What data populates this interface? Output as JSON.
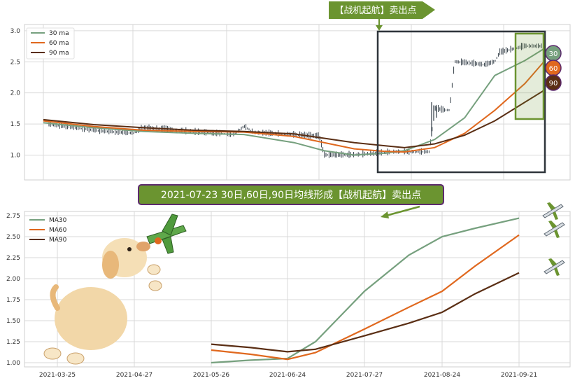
{
  "colors": {
    "ma30": "#76a07e",
    "ma60": "#e0681e",
    "ma90": "#5a2e14",
    "candle": "#2f3a44",
    "callout_bg": "#6b9430",
    "callout_border": "#5c2a6e",
    "box_dark": "#2f353b",
    "box_green": "#6b9430",
    "grid": "#d9d9d9"
  },
  "top_chart": {
    "callout_text": "【战机起航】卖出点",
    "legend": [
      "30 ma",
      "60 ma",
      "90 ma"
    ],
    "badges": [
      "30",
      "60",
      "90"
    ]
  },
  "bottom_chart": {
    "callout_text": "2021-07-23 30日,60日,90日均线形成【战机起航】卖出点",
    "legend": [
      "MA30",
      "MA60",
      "MA90"
    ]
  },
  "chart_data": [
    {
      "type": "line",
      "ylim": [
        0.6,
        3.1
      ],
      "yticks": [
        "1.0",
        "1.5",
        "2.0",
        "2.5",
        "3.0"
      ],
      "series": [
        {
          "name": "30 ma",
          "x": [
            0,
            10,
            20,
            30,
            40,
            50,
            56,
            62,
            68,
            72,
            78,
            84,
            90,
            96,
            100
          ],
          "values": [
            1.52,
            1.44,
            1.38,
            1.35,
            1.33,
            1.2,
            1.07,
            1.0,
            1.03,
            1.07,
            1.25,
            1.6,
            2.28,
            2.52,
            2.72
          ]
        },
        {
          "name": "60 ma",
          "x": [
            0,
            10,
            20,
            30,
            40,
            50,
            56,
            62,
            68,
            72,
            78,
            84,
            90,
            96,
            100
          ],
          "values": [
            1.55,
            1.46,
            1.4,
            1.38,
            1.37,
            1.3,
            1.2,
            1.1,
            1.06,
            1.05,
            1.12,
            1.35,
            1.72,
            2.15,
            2.52
          ]
        },
        {
          "name": "90 ma",
          "x": [
            0,
            10,
            20,
            30,
            40,
            50,
            56,
            62,
            68,
            72,
            78,
            84,
            90,
            96,
            100
          ],
          "values": [
            1.57,
            1.49,
            1.44,
            1.4,
            1.38,
            1.34,
            1.27,
            1.2,
            1.15,
            1.12,
            1.18,
            1.32,
            1.55,
            1.85,
            2.05
          ]
        }
      ]
    },
    {
      "type": "line",
      "xticks": [
        "2021-03-25",
        "2021-04-27",
        "2021-05-26",
        "2021-06-24",
        "2021-07-27",
        "2021-08-24",
        "2021-09-21"
      ],
      "yticks": [
        "1.00",
        "1.25",
        "1.50",
        "1.75",
        "2.00",
        "2.25",
        "2.50",
        "2.75"
      ],
      "ylim": [
        0.95,
        2.8
      ],
      "series": [
        {
          "name": "MA30",
          "x": [
            "2021-05-26",
            "2021-06-10",
            "2021-06-24",
            "2021-07-06",
            "2021-07-27",
            "2021-08-12",
            "2021-08-24",
            "2021-09-05",
            "2021-09-21"
          ],
          "values": [
            1.0,
            1.03,
            1.05,
            1.25,
            1.85,
            2.28,
            2.5,
            2.6,
            2.72
          ]
        },
        {
          "name": "MA60",
          "x": [
            "2021-05-26",
            "2021-06-10",
            "2021-06-24",
            "2021-07-06",
            "2021-07-27",
            "2021-08-12",
            "2021-08-24",
            "2021-09-05",
            "2021-09-21"
          ],
          "values": [
            1.15,
            1.1,
            1.04,
            1.12,
            1.4,
            1.66,
            1.85,
            2.15,
            2.52
          ]
        },
        {
          "name": "MA90",
          "x": [
            "2021-05-26",
            "2021-06-10",
            "2021-06-24",
            "2021-07-06",
            "2021-07-27",
            "2021-08-12",
            "2021-08-24",
            "2021-09-05",
            "2021-09-21"
          ],
          "values": [
            1.22,
            1.18,
            1.13,
            1.16,
            1.32,
            1.47,
            1.6,
            1.82,
            2.07
          ]
        }
      ]
    }
  ]
}
